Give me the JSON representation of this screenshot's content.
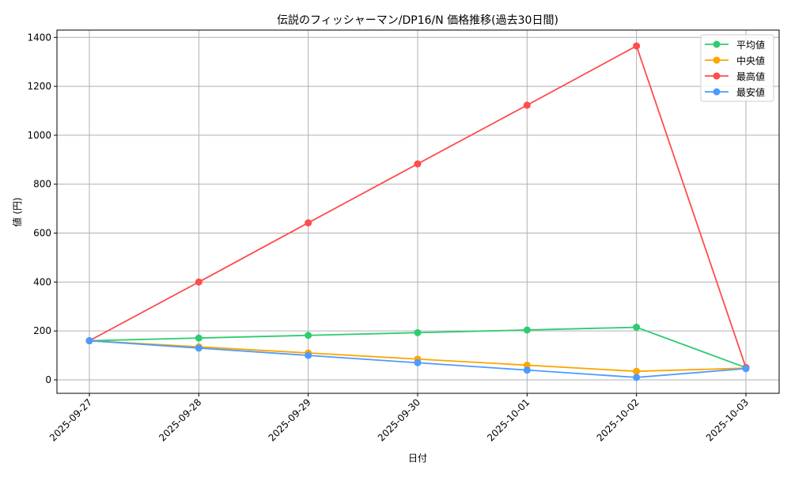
{
  "chart_data": {
    "type": "line",
    "title": "伝説のフィッシャーマン/DP16/N 価格推移(過去30日間)",
    "xlabel": "日付",
    "ylabel": "値 (円)",
    "ylim": [
      -55,
      1430
    ],
    "yticks": [
      0,
      200,
      400,
      600,
      800,
      1000,
      1200,
      1400
    ],
    "grid": true,
    "legend_position": "top-right",
    "x": [
      "2025-09-27",
      "2025-09-28",
      "2025-09-29",
      "2025-09-30",
      "2025-10-01",
      "2025-10-02",
      "2025-10-03"
    ],
    "series": [
      {
        "name": "平均値",
        "color": "#2ecc71",
        "values": [
          160,
          171,
          182,
          193,
          204,
          215,
          50
        ]
      },
      {
        "name": "中央値",
        "color": "#ffa500",
        "values": [
          160,
          135,
          110,
          85,
          60,
          35,
          48
        ]
      },
      {
        "name": "最高値",
        "color": "#ff4c4c",
        "values": [
          160,
          400,
          642,
          883,
          1123,
          1365,
          50
        ]
      },
      {
        "name": "最安値",
        "color": "#4c9bff",
        "values": [
          160,
          130,
          100,
          70,
          40,
          10,
          46
        ]
      }
    ]
  }
}
